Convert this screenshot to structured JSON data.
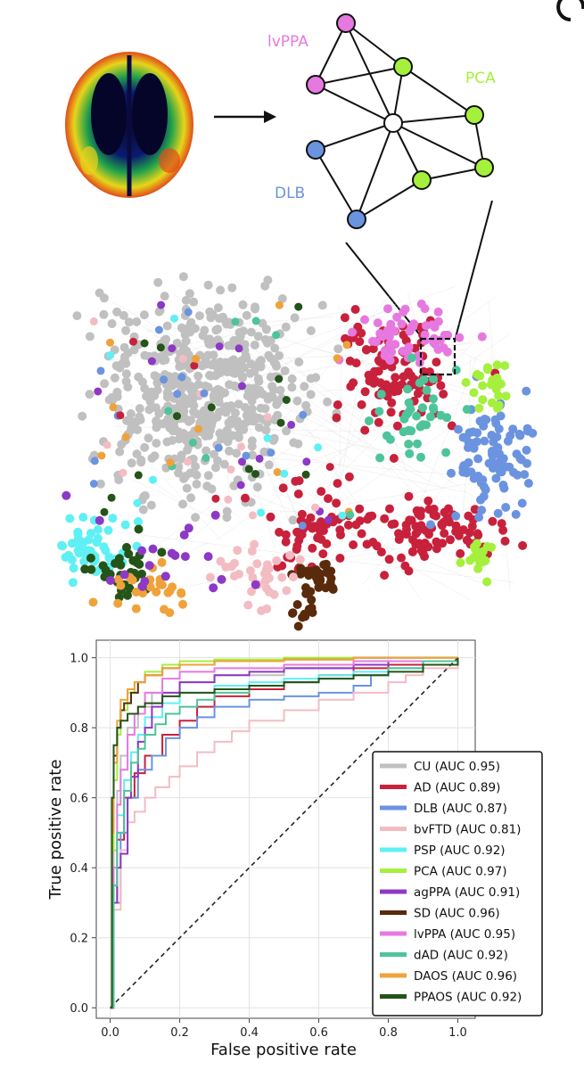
{
  "network_labels": {
    "lvppa": "lvPPA",
    "pca": "PCA",
    "dlb": "DLB"
  },
  "colors": {
    "CU": "#c0c0c0",
    "AD": "#c8213c",
    "DLB": "#6b93e0",
    "bvFTD": "#f3bcc3",
    "PSP": "#5ef0f4",
    "PCA": "#a5f03c",
    "agPPA": "#8d38c6",
    "SD": "#5a2a0c",
    "lvPPA": "#e679e0",
    "dAD": "#4dc49a",
    "DAOS": "#f0a23a",
    "PPAOS": "#245418",
    "diagonal": "#222222"
  },
  "chart_data": {
    "type": "line",
    "xlabel": "False positive rate",
    "ylabel": "True positive rate",
    "xlim": [
      -0.04,
      1.05
    ],
    "ylim": [
      -0.03,
      1.05
    ],
    "xticks": [
      0.0,
      0.2,
      0.4,
      0.6,
      0.8,
      1.0
    ],
    "yticks": [
      0.0,
      0.2,
      0.4,
      0.6,
      0.8,
      1.0
    ],
    "tick_labels": [
      "0.0",
      "0.2",
      "0.4",
      "0.6",
      "0.8",
      "1.0"
    ],
    "grid": true,
    "legend_position": "bottom-right",
    "diagonal": [
      [
        0,
        0
      ],
      [
        1,
        1
      ]
    ],
    "series": [
      {
        "name": "CU (AUC 0.95)",
        "key": "CU",
        "x": [
          0,
          0.01,
          0.02,
          0.03,
          0.05,
          0.08,
          0.12,
          0.2,
          0.3,
          0.5,
          0.7,
          0.9,
          1.0
        ],
        "y": [
          0,
          0.45,
          0.62,
          0.72,
          0.8,
          0.86,
          0.9,
          0.93,
          0.95,
          0.97,
          0.98,
          0.99,
          1.0
        ]
      },
      {
        "name": "AD (AUC 0.89)",
        "key": "AD",
        "x": [
          0,
          0.01,
          0.02,
          0.04,
          0.07,
          0.1,
          0.15,
          0.2,
          0.25,
          0.3,
          0.4,
          0.5,
          0.6,
          0.7,
          0.8,
          0.9,
          1.0
        ],
        "y": [
          0,
          0.3,
          0.48,
          0.6,
          0.67,
          0.72,
          0.78,
          0.82,
          0.86,
          0.89,
          0.91,
          0.93,
          0.95,
          0.97,
          0.98,
          0.99,
          1.0
        ]
      },
      {
        "name": "DLB (AUC 0.87)",
        "key": "DLB",
        "x": [
          0,
          0.01,
          0.03,
          0.05,
          0.08,
          0.12,
          0.16,
          0.2,
          0.25,
          0.3,
          0.4,
          0.5,
          0.6,
          0.7,
          0.75,
          0.8,
          0.9,
          1.0
        ],
        "y": [
          0,
          0.3,
          0.5,
          0.6,
          0.68,
          0.72,
          0.77,
          0.8,
          0.83,
          0.86,
          0.88,
          0.89,
          0.9,
          0.92,
          0.95,
          0.97,
          0.99,
          1.0
        ]
      },
      {
        "name": "bvFTD (AUC 0.81)",
        "key": "bvFTD",
        "x": [
          0,
          0.01,
          0.03,
          0.05,
          0.07,
          0.1,
          0.13,
          0.17,
          0.2,
          0.25,
          0.3,
          0.35,
          0.4,
          0.5,
          0.6,
          0.7,
          0.8,
          0.85,
          0.9,
          1.0
        ],
        "y": [
          0,
          0.28,
          0.45,
          0.53,
          0.56,
          0.6,
          0.63,
          0.66,
          0.69,
          0.73,
          0.76,
          0.79,
          0.82,
          0.85,
          0.88,
          0.9,
          0.93,
          0.95,
          0.97,
          1.0
        ]
      },
      {
        "name": "PSP (AUC 0.92)",
        "key": "PSP",
        "x": [
          0,
          0.01,
          0.02,
          0.04,
          0.06,
          0.08,
          0.1,
          0.15,
          0.2,
          0.3,
          0.4,
          0.5,
          0.6,
          0.7,
          0.8,
          0.9,
          1.0
        ],
        "y": [
          0,
          0.35,
          0.55,
          0.65,
          0.73,
          0.78,
          0.83,
          0.87,
          0.9,
          0.92,
          0.93,
          0.94,
          0.95,
          0.96,
          0.97,
          0.98,
          1.0
        ]
      },
      {
        "name": "PCA (AUC 0.97)",
        "key": "PCA",
        "x": [
          0,
          0.005,
          0.01,
          0.02,
          0.03,
          0.05,
          0.07,
          0.1,
          0.15,
          0.2,
          0.3,
          0.5,
          0.7,
          1.0
        ],
        "y": [
          0,
          0.45,
          0.65,
          0.78,
          0.85,
          0.9,
          0.93,
          0.96,
          0.98,
          0.99,
          0.995,
          1.0,
          1.0,
          1.0
        ]
      },
      {
        "name": "agPPA (AUC 0.91)",
        "key": "agPPA",
        "x": [
          0,
          0.01,
          0.02,
          0.03,
          0.04,
          0.05,
          0.06,
          0.08,
          0.1,
          0.12,
          0.15,
          0.2,
          0.3,
          0.4,
          0.5,
          0.6,
          0.7,
          0.8,
          0.9,
          1.0
        ],
        "y": [
          0,
          0.3,
          0.4,
          0.44,
          0.44,
          0.6,
          0.66,
          0.76,
          0.8,
          0.86,
          0.9,
          0.93,
          0.95,
          0.96,
          0.97,
          0.97,
          0.98,
          0.99,
          0.99,
          1.0
        ]
      },
      {
        "name": "SD (AUC 0.96)",
        "key": "SD",
        "x": [
          0,
          0.005,
          0.01,
          0.02,
          0.03,
          0.04,
          0.06,
          0.08,
          0.1,
          0.15,
          0.2,
          0.3,
          0.5,
          0.7,
          1.0
        ],
        "y": [
          0,
          0.55,
          0.72,
          0.8,
          0.85,
          0.87,
          0.9,
          0.93,
          0.95,
          0.97,
          0.98,
          0.99,
          0.995,
          1.0,
          1.0
        ]
      },
      {
        "name": "lvPPA (AUC 0.95)",
        "key": "lvPPA",
        "x": [
          0,
          0.01,
          0.02,
          0.03,
          0.05,
          0.07,
          0.1,
          0.15,
          0.2,
          0.3,
          0.5,
          0.7,
          1.0
        ],
        "y": [
          0,
          0.4,
          0.58,
          0.68,
          0.78,
          0.84,
          0.9,
          0.94,
          0.96,
          0.97,
          0.98,
          0.99,
          1.0
        ]
      },
      {
        "name": "dAD (AUC 0.92)",
        "key": "dAD",
        "x": [
          0,
          0.01,
          0.02,
          0.04,
          0.06,
          0.08,
          0.1,
          0.13,
          0.16,
          0.2,
          0.25,
          0.3,
          0.4,
          0.5,
          0.6,
          0.7,
          0.8,
          0.9,
          1.0
        ],
        "y": [
          0,
          0.35,
          0.5,
          0.62,
          0.7,
          0.74,
          0.78,
          0.81,
          0.84,
          0.86,
          0.88,
          0.9,
          0.92,
          0.93,
          0.94,
          0.95,
          0.97,
          0.99,
          1.0
        ]
      },
      {
        "name": "DAOS (AUC 0.96)",
        "key": "DAOS",
        "x": [
          0,
          0.005,
          0.01,
          0.02,
          0.03,
          0.05,
          0.07,
          0.1,
          0.15,
          0.2,
          0.3,
          0.5,
          0.7,
          1.0
        ],
        "y": [
          0,
          0.5,
          0.7,
          0.82,
          0.88,
          0.91,
          0.93,
          0.95,
          0.97,
          0.98,
          0.99,
          0.995,
          1.0,
          1.0
        ]
      },
      {
        "name": "PPAOS (AUC 0.92)",
        "key": "PPAOS",
        "x": [
          0,
          0.005,
          0.01,
          0.02,
          0.03,
          0.05,
          0.08,
          0.1,
          0.15,
          0.2,
          0.3,
          0.4,
          0.5,
          0.6,
          0.7,
          0.8,
          0.9,
          1.0
        ],
        "y": [
          0,
          0.6,
          0.75,
          0.8,
          0.82,
          0.84,
          0.86,
          0.87,
          0.89,
          0.9,
          0.91,
          0.92,
          0.93,
          0.94,
          0.95,
          0.96,
          0.98,
          1.0
        ]
      }
    ]
  }
}
